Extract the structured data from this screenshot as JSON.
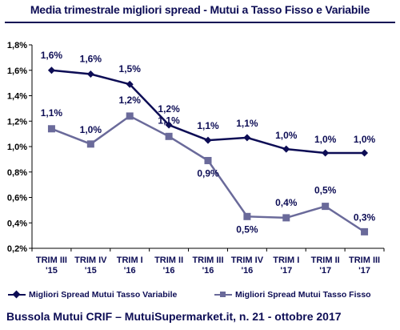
{
  "header": {
    "title": "Media trimestrale migliori spread - Mutui a Tasso Fisso e Variabile"
  },
  "footer": {
    "text": "Bussola Mutui CRIF – MutuiSupermarket.it, n. 21 - ottobre 2017"
  },
  "chart_data": {
    "type": "line",
    "title": "Media trimestrale migliori spread - Mutui a Tasso Fisso e Variabile",
    "xlabel": "",
    "ylabel": "",
    "ylim": [
      0.2,
      1.8
    ],
    "yticks": [
      "0,2%",
      "0,4%",
      "0,6%",
      "0,8%",
      "1,0%",
      "1,2%",
      "1,4%",
      "1,6%",
      "1,8%"
    ],
    "grid": false,
    "legend_position": "bottom",
    "categories": [
      [
        "TRIM III",
        "'15"
      ],
      [
        "TRIM IV",
        "'15"
      ],
      [
        "TRIM I",
        "'16"
      ],
      [
        "TRIM II",
        "'16"
      ],
      [
        "TRIM III",
        "'16"
      ],
      [
        "TRIM IV",
        "'16"
      ],
      [
        "TRIM I",
        "'17"
      ],
      [
        "TRIM II",
        "'17"
      ],
      [
        "TRIM III",
        "'17"
      ]
    ],
    "series": [
      {
        "name": "Migliori Spread Mutui Tasso Variabile",
        "color": "#0d0d55",
        "marker": "diamond",
        "values": [
          1.6,
          1.57,
          1.49,
          1.17,
          1.05,
          1.07,
          0.98,
          0.95,
          0.95
        ],
        "labels": [
          "1,6%",
          "1,6%",
          "1,5%",
          "1,2%",
          "1,1%",
          "1,1%",
          "1,0%",
          "1,0%",
          "1,0%"
        ]
      },
      {
        "name": "Migliori Spread Mutui Tasso Fisso",
        "color": "#6a6a9a",
        "marker": "square",
        "values": [
          1.14,
          1.02,
          1.24,
          1.08,
          0.89,
          0.45,
          0.44,
          0.53,
          0.33
        ],
        "labels": [
          "1,1%",
          "1,0%",
          "1,2%",
          "1,1%",
          "0,9%",
          "0,5%",
          "0,4%",
          "0,5%",
          "0,3%"
        ]
      }
    ]
  }
}
